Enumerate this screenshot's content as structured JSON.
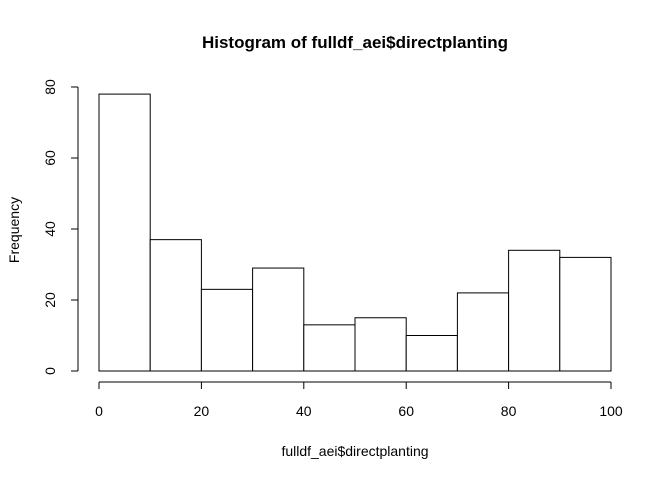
{
  "chart_data": {
    "type": "bar",
    "title": "Histogram of fulldf_aei$directplanting",
    "xlabel": "fulldf_aei$directplanting",
    "ylabel": "Frequency",
    "bins": [
      {
        "from": 0,
        "to": 10,
        "count": 78
      },
      {
        "from": 10,
        "to": 20,
        "count": 37
      },
      {
        "from": 20,
        "to": 30,
        "count": 23
      },
      {
        "from": 30,
        "to": 40,
        "count": 29
      },
      {
        "from": 40,
        "to": 50,
        "count": 13
      },
      {
        "from": 50,
        "to": 60,
        "count": 15
      },
      {
        "from": 60,
        "to": 70,
        "count": 10
      },
      {
        "from": 70,
        "to": 80,
        "count": 22
      },
      {
        "from": 80,
        "to": 90,
        "count": 34
      },
      {
        "from": 90,
        "to": 100,
        "count": 32
      }
    ],
    "xlim": [
      0,
      100
    ],
    "ylim": [
      0,
      80
    ],
    "x_ticks": [
      "0",
      "20",
      "40",
      "60",
      "80",
      "100"
    ],
    "y_ticks": [
      "0",
      "20",
      "40",
      "60",
      "80"
    ],
    "grid": false,
    "bar_fill": "#ffffff",
    "bar_stroke": "#000000"
  }
}
